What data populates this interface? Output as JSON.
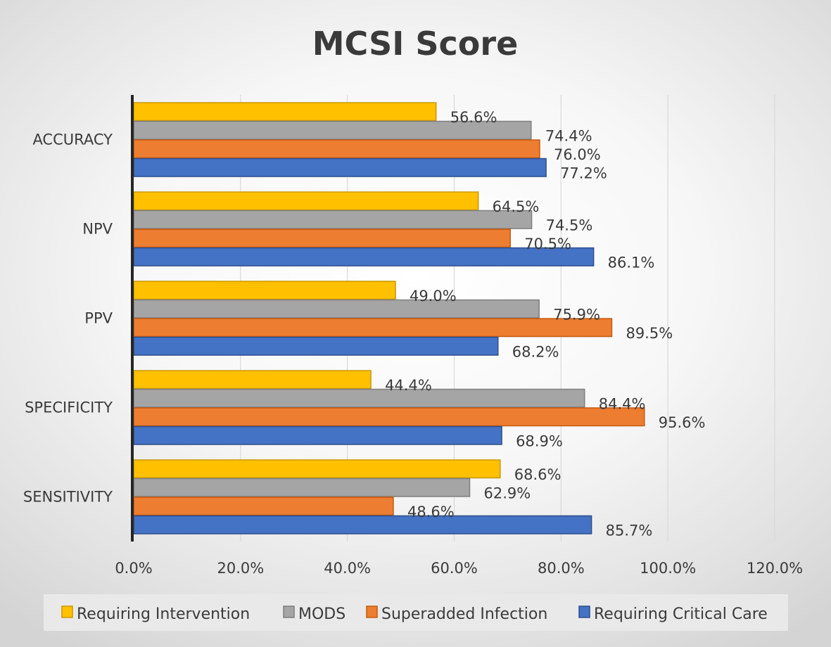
{
  "chart_data": {
    "type": "bar",
    "orientation": "horizontal",
    "title": "MCSI Score",
    "xlabel": "",
    "ylabel": "",
    "categories": [
      "ACCURACY",
      "NPV",
      "PPV",
      "SPECIFICITY",
      "SENSITIVITY"
    ],
    "series": [
      {
        "name": "Requiring Intervention",
        "color": "#ffc000",
        "border": "#c99700",
        "values": [
          56.6,
          64.5,
          49.0,
          44.4,
          68.6
        ]
      },
      {
        "name": "MODS",
        "color": "#a5a5a5",
        "border": "#7f7f7f",
        "values": [
          74.4,
          74.5,
          75.9,
          84.4,
          62.9
        ]
      },
      {
        "name": "Superadded Infection",
        "color": "#ed7d31",
        "border": "#c55a11",
        "values": [
          76.0,
          70.5,
          89.5,
          95.6,
          48.6
        ]
      },
      {
        "name": "Requiring Critical Care",
        "color": "#4472c4",
        "border": "#2f4e8c",
        "values": [
          77.2,
          86.1,
          68.2,
          68.9,
          85.7
        ]
      }
    ],
    "data_labels": [
      [
        "56.6%",
        "74.4%",
        "76.0%",
        "77.2%"
      ],
      [
        "64.5%",
        "74.5%",
        "70.5%",
        "86.1%"
      ],
      [
        "49.0%",
        "75.9%",
        "89.5%",
        "68.2%"
      ],
      [
        "44.4%",
        "84.4%",
        "95.6%",
        "68.9%"
      ],
      [
        "68.6%",
        "62.9%",
        "48.6%",
        "85.7%"
      ]
    ],
    "xlim": [
      0,
      120
    ],
    "xticks": [
      0,
      20,
      40,
      60,
      80,
      100,
      120
    ],
    "xtick_labels": [
      "0.0%",
      "20.0%",
      "40.0%",
      "60.0%",
      "80.0%",
      "100.0%",
      "120.0%"
    ],
    "grid": "vertical",
    "legend_position": "bottom"
  }
}
